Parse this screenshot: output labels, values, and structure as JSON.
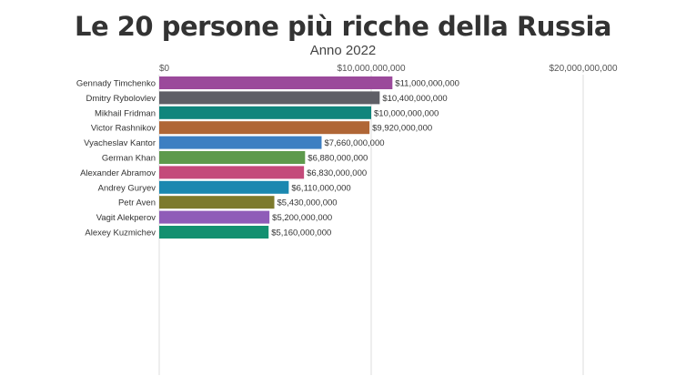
{
  "title": "Le 20 persone più ricche della Russia",
  "subtitle": "Anno 2022",
  "chart_data": {
    "type": "bar",
    "orientation": "horizontal",
    "title": "Le 20 persone più ricche della Russia",
    "subtitle": "Anno 2022",
    "xlim": [
      0,
      20000000000
    ],
    "x_ticks": [
      0,
      10000000000,
      20000000000
    ],
    "x_tick_labels": [
      "$0",
      "$10,000,000,000",
      "$20,000,000,000"
    ],
    "grid": true,
    "legend": "none",
    "categories": [
      "Gennady Timchenko",
      "Dmitry Rybolovlev",
      "Mikhail Fridman",
      "Victor Rashnikov",
      "Vyacheslav Kantor",
      "German Khan",
      "Alexander Abramov",
      "Andrey Guryev",
      "Petr Aven",
      "Vagit Alekperov",
      "Alexey Kuzmichev"
    ],
    "values": [
      11000000000,
      10400000000,
      10000000000,
      9920000000,
      7660000000,
      6880000000,
      6830000000,
      6110000000,
      5430000000,
      5200000000,
      5160000000
    ],
    "value_labels": [
      "$11,000,000,000",
      "$10,400,000,000",
      "$10,000,000,000",
      "$9,920,000,000",
      "$7,660,000,000",
      "$6,880,000,000",
      "$6,830,000,000",
      "$6,110,000,000",
      "$5,430,000,000",
      "$5,200,000,000",
      "$5,160,000,000"
    ],
    "colors": [
      "#9b4a9b",
      "#5f5f66",
      "#10857c",
      "#b06636",
      "#3d7fc2",
      "#5e9a4c",
      "#c44a7a",
      "#1b88b0",
      "#7d7a2c",
      "#8f5cb8",
      "#139070"
    ]
  }
}
